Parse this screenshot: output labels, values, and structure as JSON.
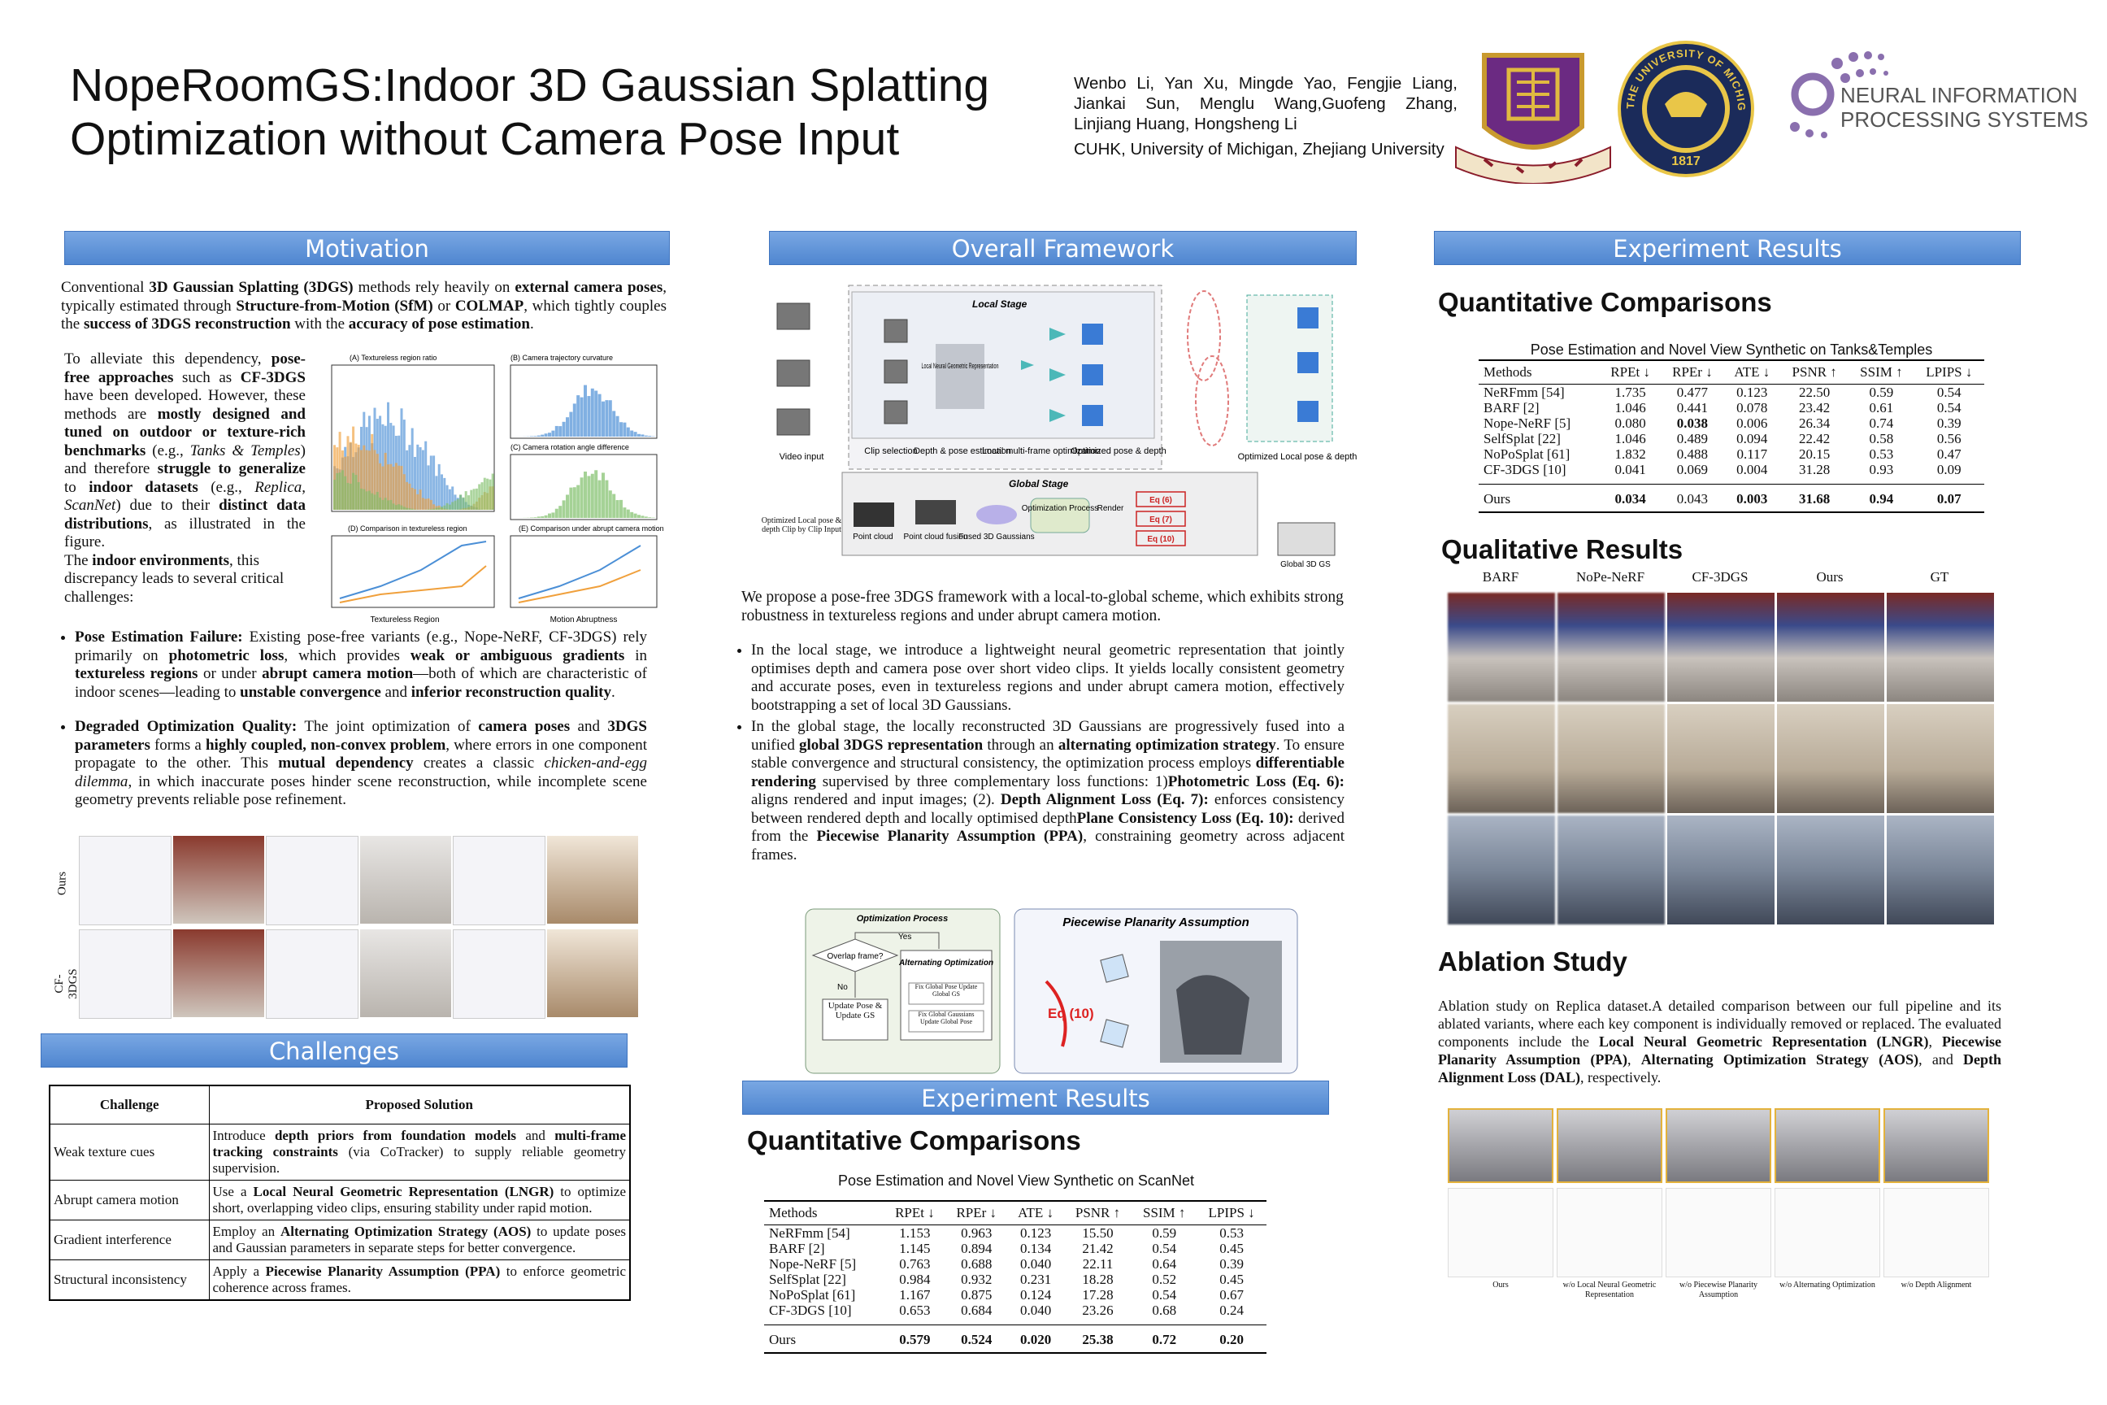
{
  "header": {
    "title_lines": [
      "NopeRoomGS:Indoor 3D Gaussian Splatting",
      "Optimization without Camera Pose Input"
    ],
    "authors": "Wenbo Li, Yan Xu, Mingde Yao, Fengjie Liang, Jiankai Sun, Menglu Wang,Guofeng Zhang, Linjiang Huang, Hongsheng Li",
    "affiliations": "CUHK, University of Michigan, Zhejiang University",
    "logos": {
      "michigan": [
        "THE UNIVERSITY OF MICHIGAN",
        "1817"
      ],
      "neurips": [
        "NEURAL INFORMATION",
        "PROCESSING SYSTEMS"
      ]
    }
  },
  "motivation": {
    "heading": "Motivation",
    "intro": [
      "Conventional ",
      {
        "bold": "3D Gaussian Splatting (3DGS)"
      },
      " methods rely heavily on ",
      {
        "bold": "external camera poses"
      },
      ", typically estimated through ",
      {
        "bold": "Structure-from-Motion (SfM)"
      },
      " or ",
      {
        "bold": "COLMAP"
      },
      ", which tightly couples the ",
      {
        "bold": "success of 3DGS reconstruction"
      },
      " with the ",
      {
        "bold": "accuracy of pose estimation"
      },
      "."
    ],
    "paragraph": [
      "To alleviate this dependency, ",
      {
        "bold": "pose-free approaches"
      },
      " such as ",
      {
        "bold": "CF-3DGS"
      },
      " have been developed. However, these methods are ",
      {
        "bold": "mostly designed and tuned on outdoor or texture-rich benchmarks"
      },
      " (e.g., ",
      {
        "italic": "Tanks & Temples"
      },
      ") and therefore ",
      {
        "bold": "struggle to generalize"
      },
      " to ",
      {
        "bold": "indoor datasets"
      },
      " (e.g., ",
      {
        "italic": "Replica"
      },
      ", ",
      {
        "italic": "ScanNet"
      },
      ") due to their ",
      {
        "bold": "distinct data distributions"
      },
      ", as illustrated in the figure."
    ],
    "paragraph2": [
      "The ",
      {
        "bold": "indoor environments"
      },
      ", this discrepancy leads to several critical challenges:"
    ],
    "figure_labels": [
      "(A) Textureless region ratio",
      "(B) Camera trajectory curvature",
      "(C) Camera rotation angle difference",
      "(D) Comparison in textureless region",
      "(E) Comparison under abrupt camera motion",
      "Textureless Region",
      "Motion Abruptness"
    ],
    "bullets": [
      [
        {
          "bold": "Pose Estimation Failure:"
        },
        " Existing pose-free variants (e.g., Nope-NeRF, CF-3DGS) rely primarily on ",
        {
          "bold": "photometric loss"
        },
        ", which provides ",
        {
          "bold": "weak or ambiguous gradients"
        },
        " in ",
        {
          "bold": "textureless regions"
        },
        " or under ",
        {
          "bold": "abrupt camera motion"
        },
        "—both of which are characteristic of indoor scenes—leading to ",
        {
          "bold": "unstable convergence"
        },
        " and ",
        {
          "bold": "inferior reconstruction quality"
        },
        "."
      ],
      [
        {
          "bold": "Degraded Optimization Quality:"
        },
        " The joint optimization of ",
        {
          "bold": "camera poses"
        },
        " and ",
        {
          "bold": "3DGS parameters"
        },
        " forms a ",
        {
          "bold": "highly coupled, non-convex problem"
        },
        ", where errors in one component propagate to the other. This ",
        {
          "bold": "mutual dependency"
        },
        " creates a classic ",
        {
          "italic": "chicken-and-egg dilemma"
        },
        ", in which inaccurate poses hinder scene reconstruction, while incomplete scene geometry prevents reliable pose refinement."
      ]
    ],
    "grid_rows": [
      "Ours",
      "CF-3DGS"
    ]
  },
  "challenges": {
    "heading": "Challenges",
    "columns": [
      "Challenge",
      "Proposed Solution"
    ],
    "rows": [
      [
        "Weak texture cues",
        [
          "Introduce ",
          {
            "bold": "depth priors from foundation models"
          },
          " and ",
          {
            "bold": "multi-frame tracking constraints"
          },
          " (via CoTracker) to supply reliable geometry supervision."
        ]
      ],
      [
        "Abrupt camera motion",
        [
          "Use a ",
          {
            "bold": "Local Neural Geometric Representation (LNGR)"
          },
          " to optimize short, overlapping video clips, ensuring stability under rapid motion."
        ]
      ],
      [
        "Gradient interference",
        [
          "Employ an ",
          {
            "bold": "Alternating Optimization Strategy (AOS)"
          },
          " to update poses and Gaussian parameters in separate steps for better convergence."
        ]
      ],
      [
        "Structural inconsistency",
        [
          "Apply a ",
          {
            "bold": "Piecewise Planarity Assumption (PPA)"
          },
          " to enforce geometric coherence across frames."
        ]
      ]
    ]
  },
  "framework": {
    "heading": "Overall Framework",
    "diagram": {
      "local_stage": "Local Stage",
      "global_stage": "Global Stage",
      "video_input": "Video input",
      "lngr": "Local Neural Geometric Representation",
      "steps": [
        "Clip selection",
        "Depth & pose estimation",
        "Local multi-frame optimization",
        "Optimized pose & depth"
      ],
      "optimized_local": "Optimized Local pose & depth",
      "clip_input": "Optimized Local pose & depth Clip by Clip Input",
      "point_cloud": "Point cloud",
      "fusion": "Point cloud fusion",
      "fused": "Fused 3D Gaussians",
      "opt_process": "Optimization Process",
      "render": "Render",
      "eqs": [
        "Eq (6)",
        "Eq (7)",
        "Eq (10)"
      ],
      "global_gs": "Global 3D GS"
    },
    "intro": "We propose a pose-free 3DGS framework with a local-to-global scheme, which exhibits strong robustness in textureless regions and under abrupt camera motion.",
    "bullets": [
      "In the local stage, we introduce a lightweight neural geometric representation that jointly optimises depth and camera pose over short video clips. It yields locally consistent geometry and accurate poses, even in textureless regions and under abrupt camera motion, effectively bootstrapping a set of local 3D Gaussians.",
      [
        "In the global stage, the locally reconstructed 3D Gaussians are progressively fused into a unified ",
        {
          "bold": "global 3DGS representation"
        },
        " through an ",
        {
          "bold": "alternating optimization strategy"
        },
        ". To ensure stable convergence and structural consistency, the optimization process employs ",
        {
          "bold": "differentiable rendering"
        },
        " supervised by three complementary loss functions: 1)",
        {
          "bold": "Photometric Loss (Eq. 6):"
        },
        " aligns rendered and input images; (2). ",
        {
          "bold": "Depth Alignment Loss (Eq. 7):"
        },
        " enforces consistency between rendered depth and locally optimised depth",
        {
          "bold": "Plane Consistency Loss (Eq. 10):"
        },
        " derived from the ",
        {
          "bold": "Piecewise Planarity Assumption (PPA)"
        },
        ", constraining geometry across adjacent frames."
      ]
    ],
    "opt_diagram": {
      "title": "Optimization Process",
      "question": "Overlap frame?",
      "yes": "Yes",
      "no": "No",
      "alt": "Alternating Optimization",
      "alt_steps": [
        "Fix Global Pose Update Global GS",
        "Fix Global Gaussians Update Global Pose"
      ],
      "update": "Update Pose & Update GS"
    },
    "ppa_diagram": {
      "title": "Piecewise Planarity Assumption",
      "eq": "Eq (10)"
    }
  },
  "scannet": {
    "heading": "Experiment Results",
    "subheading": "Quantitative Comparisons",
    "caption": "Pose Estimation and Novel View Synthetic on ScanNet",
    "columns": [
      "Methods",
      "RPEt ↓",
      "RPEr ↓",
      "ATE ↓",
      "PSNR ↑",
      "SSIM ↑",
      "LPIPS ↓"
    ],
    "rows": [
      [
        "NeRFmm [54]",
        "1.153",
        "0.963",
        "0.123",
        "15.50",
        "0.59",
        "0.53"
      ],
      [
        "BARF [2]",
        "1.145",
        "0.894",
        "0.134",
        "21.42",
        "0.54",
        "0.45"
      ],
      [
        "Nope-NeRF [5]",
        "0.763",
        "0.688",
        "0.040",
        "22.11",
        "0.64",
        "0.39"
      ],
      [
        "SelfSplat [22]",
        "0.984",
        "0.932",
        "0.231",
        "18.28",
        "0.52",
        "0.45"
      ],
      [
        "NoPoSplat [61]",
        "1.167",
        "0.875",
        "0.124",
        "17.28",
        "0.54",
        "0.67"
      ],
      [
        "CF-3DGS [10]",
        "0.653",
        "0.684",
        "0.040",
        "23.26",
        "0.68",
        "0.24"
      ],
      [
        "Ours",
        {
          "bold": "0.579"
        },
        {
          "bold": "0.524"
        },
        {
          "bold": "0.020"
        },
        {
          "bold": "25.38"
        },
        {
          "bold": "0.72"
        },
        {
          "bold": "0.20"
        }
      ]
    ]
  },
  "results": {
    "heading": "Experiment Results",
    "subheading": "Quantitative Comparisons",
    "caption": "Pose Estimation and Novel View Synthetic on Tanks&Temples",
    "columns": [
      "Methods",
      "RPEt ↓",
      "RPEr ↓",
      "ATE ↓",
      "PSNR ↑",
      "SSIM ↑",
      "LPIPS ↓"
    ],
    "rows": [
      [
        "NeRFmm [54]",
        "1.735",
        "0.477",
        "0.123",
        "22.50",
        "0.59",
        "0.54"
      ],
      [
        "BARF [2]",
        "1.046",
        "0.441",
        "0.078",
        "23.42",
        "0.61",
        "0.54"
      ],
      [
        "Nope-NeRF [5]",
        "0.080",
        {
          "bold": "0.038"
        },
        "0.006",
        "26.34",
        "0.74",
        "0.39"
      ],
      [
        "SelfSplat [22]",
        "1.046",
        "0.489",
        "0.094",
        "22.42",
        "0.58",
        "0.56"
      ],
      [
        "NoPoSplat [61]",
        "1.832",
        "0.488",
        "0.117",
        "20.15",
        "0.53",
        "0.47"
      ],
      [
        "CF-3DGS [10]",
        "0.041",
        "0.069",
        "0.004",
        "31.28",
        "0.93",
        "0.09"
      ],
      [
        "Ours",
        {
          "bold": "0.034"
        },
        "0.043",
        {
          "bold": "0.003"
        },
        {
          "bold": "31.68"
        },
        {
          "bold": "0.94"
        },
        {
          "bold": "0.07"
        }
      ]
    ],
    "qualitative_heading": "Qualitative Results",
    "qualitative_columns": [
      "BARF",
      "NoPe-NeRF",
      "CF-3DGS",
      "Ours",
      "GT"
    ],
    "ablation_heading": "Ablation Study",
    "ablation_text": [
      "Ablation study on Replica dataset.A detailed comparison between our full pipeline and its ablated variants, where each key component is individually removed or replaced. The evaluated components include the ",
      {
        "bold": "Local Neural Geometric Representation (LNGR)"
      },
      ", ",
      {
        "bold": "Piecewise Planarity Assumption (PPA)"
      },
      ", ",
      {
        "bold": "Alternating Optimization Strategy (AOS)"
      },
      ", and ",
      {
        "bold": "Depth Alignment Loss (DAL)"
      },
      ", respectively."
    ],
    "ablation_captions": [
      "Ours",
      "w/o Local Neural Geometric Representation",
      "w/o Piecewise Planarity Assumption",
      "w/o Alternating Optimization",
      "w/o Depth Alignment"
    ]
  }
}
